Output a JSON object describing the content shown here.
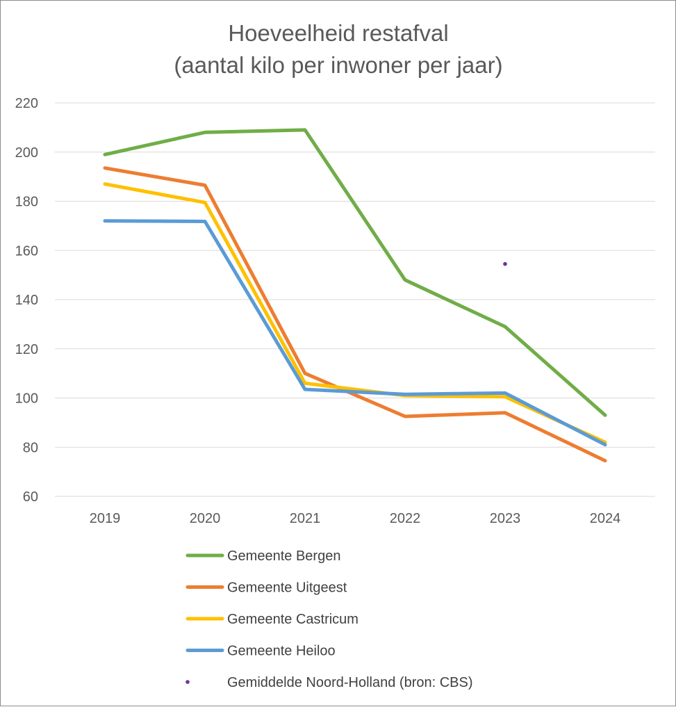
{
  "chart_data": {
    "type": "line",
    "title_line1": "Hoeveelheid restafval",
    "title_line2": "(aantal kilo per inwoner per jaar)",
    "categories": [
      "2019",
      "2020",
      "2021",
      "2022",
      "2023",
      "2024"
    ],
    "ylim": [
      60,
      220
    ],
    "yticks": [
      60,
      80,
      100,
      120,
      140,
      160,
      180,
      200,
      220
    ],
    "grid": true,
    "legend_position": "bottom",
    "series": [
      {
        "name": "Gemeente Bergen",
        "color": "#70ad47",
        "style": "line",
        "values": [
          199,
          208,
          209,
          148,
          129,
          93
        ]
      },
      {
        "name": "Gemeente Uitgeest",
        "color": "#ed7d31",
        "style": "line",
        "values": [
          193.5,
          186.5,
          110,
          92.5,
          94,
          74.5
        ]
      },
      {
        "name": "Gemeente Castricum",
        "color": "#ffc000",
        "style": "line",
        "values": [
          187,
          179.5,
          106,
          101,
          100.5,
          82
        ]
      },
      {
        "name": "Gemeente Heiloo",
        "color": "#5b9bd5",
        "style": "line",
        "values": [
          172,
          171.8,
          103.5,
          101.5,
          102,
          81
        ]
      },
      {
        "name": "Gemiddelde Noord-Holland (bron: CBS)",
        "color": "#7030a0",
        "style": "marker",
        "values": [
          null,
          null,
          null,
          null,
          154.5,
          null
        ]
      }
    ]
  }
}
